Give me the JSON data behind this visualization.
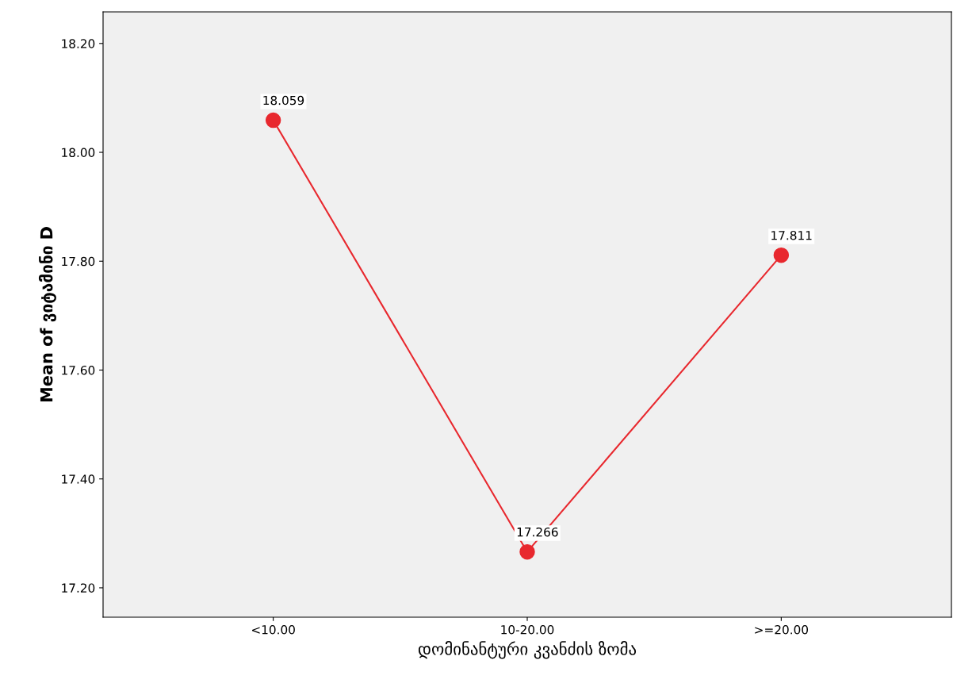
{
  "chart_data": {
    "type": "line",
    "xlabel": "დომინანტური კვანძის ზომა",
    "ylabel": "Mean of ვიტამინი D",
    "categories": [
      "<10.00",
      "10-20.00",
      ">=20.00"
    ],
    "series": [
      {
        "color": "#e8282e",
        "values": [
          18.059,
          17.266,
          17.811
        ]
      }
    ],
    "ylim": [
      17.146,
      18.258
    ],
    "yticks": [
      {
        "value": 17.2,
        "label": "17.20"
      },
      {
        "value": 17.4,
        "label": "17.40"
      },
      {
        "value": 17.6,
        "label": "17.60"
      },
      {
        "value": 17.8,
        "label": "17.80"
      },
      {
        "value": 18.0,
        "label": "18.00"
      },
      {
        "value": 18.2,
        "label": "18.20"
      }
    ],
    "marker": "circle",
    "line_style": "solid",
    "data_labels": true,
    "grid": false,
    "legend": false
  }
}
